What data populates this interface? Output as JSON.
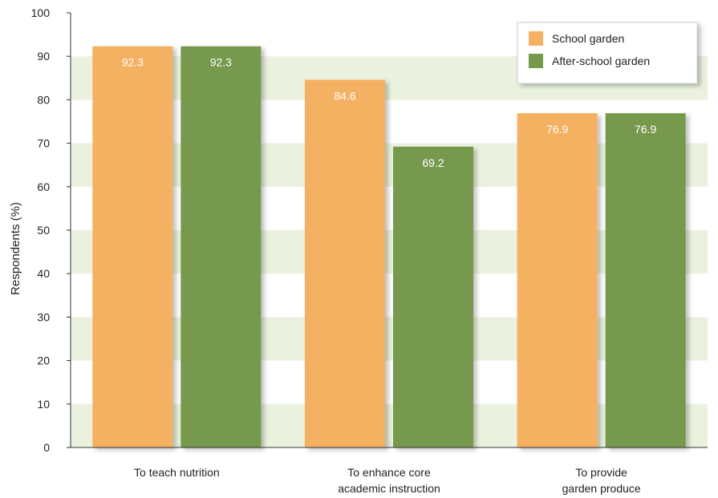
{
  "colors": {
    "school": "#f5b162",
    "after_school": "#77994d",
    "band": "#eaf2df",
    "axis": "#333333"
  },
  "chart_data": {
    "type": "bar",
    "title": "",
    "xlabel": "",
    "ylabel": "Respondents (%)",
    "ylim": [
      0,
      100
    ],
    "yticks": [
      0,
      10,
      20,
      30,
      40,
      50,
      60,
      70,
      80,
      90,
      100
    ],
    "grid": "alternating horizontal bands",
    "legend_position": "top-right",
    "categories": [
      [
        "To teach nutrition"
      ],
      [
        "To enhance core",
        "academic instruction"
      ],
      [
        "To provide",
        "garden produce"
      ]
    ],
    "series": [
      {
        "name": "School garden",
        "color_key": "school",
        "values": [
          92.3,
          84.6,
          76.9
        ]
      },
      {
        "name": "After-school garden",
        "color_key": "after_school",
        "values": [
          92.3,
          69.2,
          76.9
        ]
      }
    ]
  }
}
